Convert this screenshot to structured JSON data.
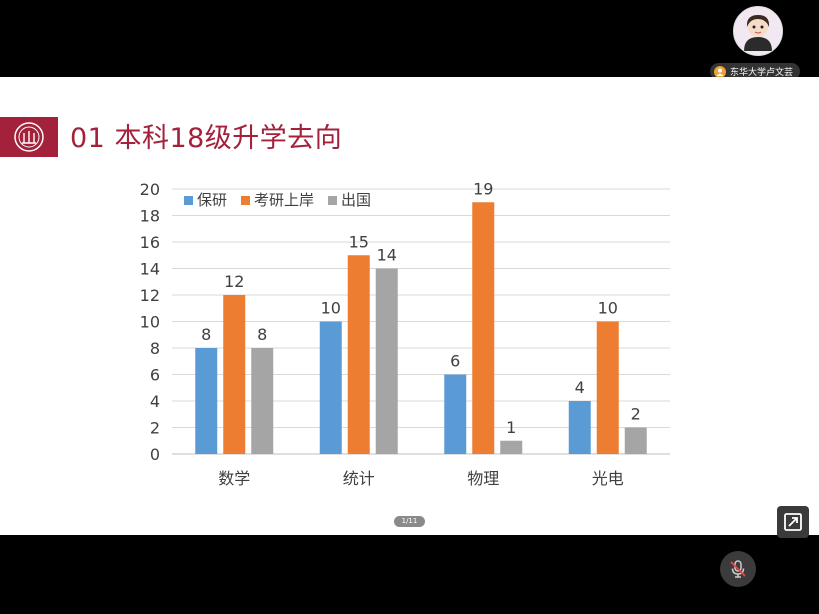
{
  "participant": {
    "name": "东华大学卢文芸"
  },
  "slide": {
    "title": "01 本科18级升学去向",
    "page_indicator": "1/11"
  },
  "colors": {
    "brand": "#a3213b",
    "series_baoyan": "#5b9bd5",
    "series_kaoyan": "#ed7d31",
    "series_chuguo": "#a5a5a5"
  },
  "icons": {
    "logo": "university-seal-icon",
    "expand": "expand-icon",
    "mic": "mic-muted-icon",
    "person": "person-icon"
  },
  "chart_data": {
    "type": "bar",
    "categories": [
      "数学",
      "统计",
      "物理",
      "光电"
    ],
    "series": [
      {
        "name": "保研",
        "values": [
          8,
          10,
          6,
          4
        ]
      },
      {
        "name": "考研上岸",
        "values": [
          12,
          15,
          19,
          10
        ]
      },
      {
        "name": "出国",
        "values": [
          8,
          14,
          1,
          2
        ]
      }
    ],
    "ylim": [
      0,
      20
    ],
    "yticks": [
      0,
      2,
      4,
      6,
      8,
      10,
      12,
      14,
      16,
      18,
      20
    ],
    "grid": true,
    "legend_position": "top-left",
    "data_labels": true
  }
}
